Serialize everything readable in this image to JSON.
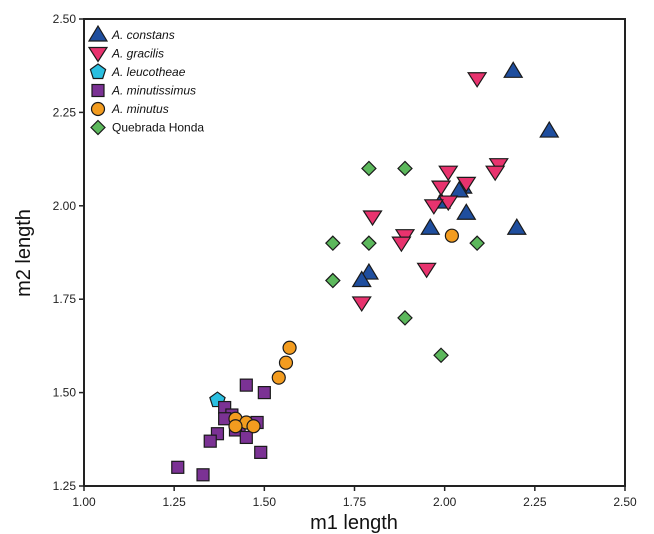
{
  "chart_data": {
    "type": "scatter",
    "xlabel": "m1 length",
    "ylabel": "m2 length",
    "xlim": [
      1.0,
      2.5
    ],
    "ylim": [
      1.25,
      2.5
    ],
    "x_ticks": [
      "1.00",
      "1.25",
      "1.50",
      "1.75",
      "2.00",
      "2.25",
      "2.50"
    ],
    "y_ticks": [
      "1.25",
      "1.50",
      "1.75",
      "2.00",
      "2.25",
      "2.50"
    ],
    "grid": false,
    "legend_position": "top-left",
    "series": [
      {
        "name": "A. constans",
        "italic": true,
        "marker": "triangle-up",
        "color": "#1f4e9e",
        "points": [
          [
            2.19,
            2.36
          ],
          [
            2.29,
            2.2
          ],
          [
            2.05,
            2.05
          ],
          [
            2.04,
            2.04
          ],
          [
            1.99,
            2.01
          ],
          [
            1.96,
            1.94
          ],
          [
            2.06,
            1.98
          ],
          [
            2.2,
            1.94
          ],
          [
            1.79,
            1.82
          ],
          [
            1.77,
            1.8
          ]
        ]
      },
      {
        "name": "A. gracilis",
        "italic": true,
        "marker": "triangle-down",
        "color": "#e8336e",
        "points": [
          [
            2.09,
            2.34
          ],
          [
            2.15,
            2.11
          ],
          [
            2.14,
            2.09
          ],
          [
            2.01,
            2.09
          ],
          [
            1.99,
            2.05
          ],
          [
            2.06,
            2.06
          ],
          [
            2.01,
            2.01
          ],
          [
            1.97,
            2.0
          ],
          [
            1.8,
            1.97
          ],
          [
            1.89,
            1.92
          ],
          [
            1.88,
            1.9
          ],
          [
            1.95,
            1.83
          ],
          [
            1.77,
            1.74
          ]
        ]
      },
      {
        "name": "A. leucotheae",
        "italic": true,
        "marker": "pentagon",
        "color": "#2bbfe0",
        "points": [
          [
            1.37,
            1.48
          ]
        ]
      },
      {
        "name": "A. minutissimus",
        "italic": true,
        "marker": "square",
        "color": "#7b3294",
        "points": [
          [
            1.45,
            1.52
          ],
          [
            1.5,
            1.5
          ],
          [
            1.39,
            1.46
          ],
          [
            1.41,
            1.44
          ],
          [
            1.39,
            1.43
          ],
          [
            1.43,
            1.41
          ],
          [
            1.48,
            1.42
          ],
          [
            1.42,
            1.4
          ],
          [
            1.45,
            1.38
          ],
          [
            1.37,
            1.39
          ],
          [
            1.35,
            1.37
          ],
          [
            1.49,
            1.34
          ],
          [
            1.26,
            1.3
          ],
          [
            1.33,
            1.28
          ]
        ]
      },
      {
        "name": "A. minutus",
        "italic": true,
        "marker": "circle",
        "color": "#f39c1f",
        "points": [
          [
            1.57,
            1.62
          ],
          [
            1.56,
            1.58
          ],
          [
            1.54,
            1.54
          ],
          [
            1.42,
            1.43
          ],
          [
            1.45,
            1.42
          ],
          [
            1.47,
            1.41
          ],
          [
            1.42,
            1.41
          ],
          [
            2.02,
            1.92
          ]
        ]
      },
      {
        "name": "Quebrada Honda",
        "italic": false,
        "marker": "diamond",
        "color": "#5cb85c",
        "points": [
          [
            1.79,
            2.1
          ],
          [
            1.89,
            2.1
          ],
          [
            1.69,
            1.9
          ],
          [
            1.79,
            1.9
          ],
          [
            2.09,
            1.9
          ],
          [
            1.69,
            1.8
          ],
          [
            1.89,
            1.7
          ],
          [
            1.99,
            1.6
          ]
        ]
      }
    ]
  }
}
